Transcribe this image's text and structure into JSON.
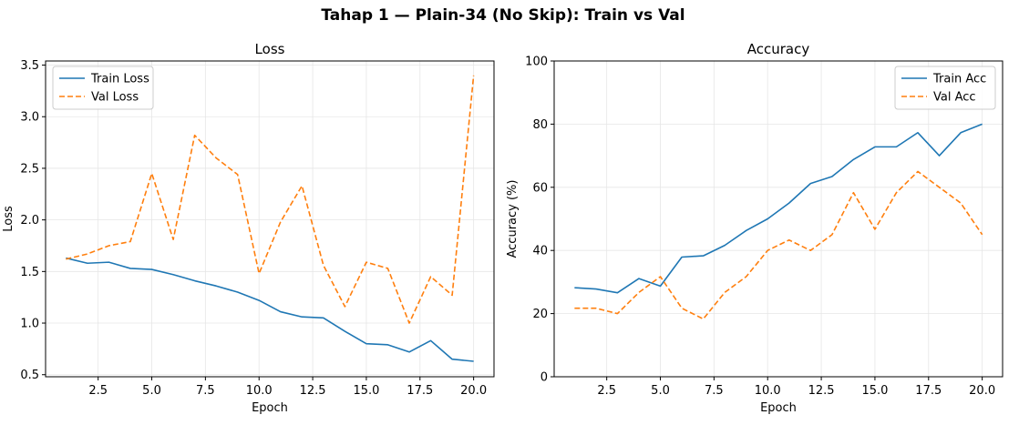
{
  "figure": {
    "title": "Tahap 1 — Plain-34 (No Skip): Train vs Val"
  },
  "colors": {
    "train": "#1f77b4",
    "val": "#ff7f0e",
    "grid": "#e6e6e6",
    "axis": "#000000"
  },
  "chart_data": [
    {
      "type": "line",
      "title": "Loss",
      "xlabel": "Epoch",
      "ylabel": "Loss",
      "xlim": [
        0.05,
        20.95
      ],
      "ylim": [
        0.48,
        3.54
      ],
      "xticks": [
        2.5,
        5.0,
        7.5,
        10.0,
        12.5,
        15.0,
        17.5,
        20.0
      ],
      "xtick_labels": [
        "2.5",
        "5.0",
        "7.5",
        "10.0",
        "12.5",
        "15.0",
        "17.5",
        "20.0"
      ],
      "yticks": [
        0.5,
        1.0,
        1.5,
        2.0,
        2.5,
        3.0,
        3.5
      ],
      "ytick_labels": [
        "0.5",
        "1.0",
        "1.5",
        "2.0",
        "2.5",
        "3.0",
        "3.5"
      ],
      "grid": true,
      "legend_position": "upper-left",
      "x": [
        1,
        2,
        3,
        4,
        5,
        6,
        7,
        8,
        9,
        10,
        11,
        12,
        13,
        14,
        15,
        16,
        17,
        18,
        19,
        20
      ],
      "series": [
        {
          "name": "Train Loss",
          "style": "solid",
          "color_key": "train",
          "values": [
            1.63,
            1.58,
            1.59,
            1.53,
            1.52,
            1.47,
            1.41,
            1.36,
            1.3,
            1.22,
            1.11,
            1.06,
            1.05,
            0.92,
            0.8,
            0.79,
            0.72,
            0.83,
            0.65,
            0.63
          ]
        },
        {
          "name": "Val Loss",
          "style": "dashed",
          "color_key": "val",
          "values": [
            1.62,
            1.67,
            1.75,
            1.79,
            2.45,
            1.81,
            2.82,
            2.6,
            2.44,
            1.48,
            1.98,
            2.33,
            1.56,
            1.16,
            1.59,
            1.53,
            1.0,
            1.45,
            1.27,
            3.4
          ]
        }
      ]
    },
    {
      "type": "line",
      "title": "Accuracy",
      "xlabel": "Epoch",
      "ylabel": "Accuracy (%)",
      "xlim": [
        0.05,
        20.95
      ],
      "ylim": [
        0,
        100
      ],
      "xticks": [
        2.5,
        5.0,
        7.5,
        10.0,
        12.5,
        15.0,
        17.5,
        20.0
      ],
      "xtick_labels": [
        "2.5",
        "5.0",
        "7.5",
        "10.0",
        "12.5",
        "15.0",
        "17.5",
        "20.0"
      ],
      "yticks": [
        0,
        20,
        40,
        60,
        80,
        100
      ],
      "ytick_labels": [
        "0",
        "20",
        "40",
        "60",
        "80",
        "100"
      ],
      "grid": true,
      "legend_position": "upper-right",
      "x": [
        1,
        2,
        3,
        4,
        5,
        6,
        7,
        8,
        9,
        10,
        11,
        12,
        13,
        14,
        15,
        16,
        17,
        18,
        19,
        20
      ],
      "series": [
        {
          "name": "Train Acc",
          "style": "solid",
          "color_key": "train",
          "values": [
            28.2,
            27.8,
            26.6,
            31.1,
            28.7,
            37.9,
            38.3,
            41.6,
            46.3,
            50.0,
            55.0,
            61.2,
            63.4,
            68.8,
            72.8,
            72.8,
            77.3,
            70.0,
            77.3,
            80.0
          ]
        },
        {
          "name": "Val Acc",
          "style": "dashed",
          "color_key": "val",
          "values": [
            21.7,
            21.7,
            20.0,
            26.7,
            31.7,
            21.7,
            18.3,
            26.7,
            31.7,
            40.0,
            43.3,
            40.0,
            45.0,
            58.3,
            46.7,
            58.3,
            65.0,
            60.0,
            55.0,
            45.0
          ]
        }
      ]
    }
  ]
}
